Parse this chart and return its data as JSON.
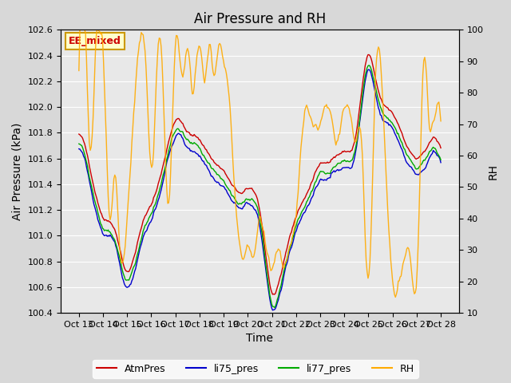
{
  "title": "Air Pressure and RH",
  "xlabel": "Time",
  "ylabel_left": "Air Pressure (kPa)",
  "ylabel_right": "RH",
  "ylim_left": [
    100.4,
    102.6
  ],
  "ylim_right": [
    10,
    100
  ],
  "yticks_left": [
    100.4,
    100.6,
    100.8,
    101.0,
    101.2,
    101.4,
    101.6,
    101.8,
    102.0,
    102.2,
    102.4,
    102.6
  ],
  "yticks_right": [
    10,
    20,
    30,
    40,
    50,
    60,
    70,
    80,
    90,
    100
  ],
  "xtick_labels": [
    "Oct 13",
    "Oct 14",
    "Oct 15",
    "Oct 16",
    "Oct 17",
    "Oct 18",
    "Oct 19",
    "Oct 20",
    "Oct 21",
    "Oct 22",
    "Oct 23",
    "Oct 24",
    "Oct 25",
    "Oct 26",
    "Oct 27",
    "Oct 28"
  ],
  "legend_labels": [
    "AtmPres",
    "li75_pres",
    "li77_pres",
    "RH"
  ],
  "colors": {
    "AtmPres": "#cc0000",
    "li75_pres": "#0000cc",
    "li77_pres": "#00aa00",
    "RH": "#ffaa00"
  },
  "annotation_text": "EE_mixed",
  "annotation_bg": "#ffffcc",
  "annotation_border": "#cc9900",
  "bg_color": "#e8e8e8",
  "plot_bg": "#f0f0f0",
  "grid_color": "#ffffff",
  "title_fontsize": 12,
  "label_fontsize": 10,
  "tick_fontsize": 8
}
